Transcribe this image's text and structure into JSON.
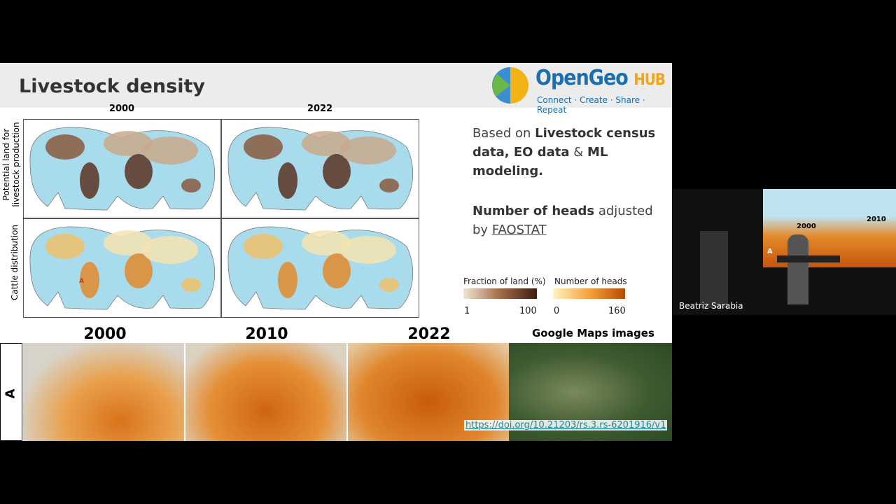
{
  "slide": {
    "title": "Livestock density",
    "logo": {
      "name": "OpenGeo",
      "hub": "HUB",
      "tagline": "Connect · Create · Share · Repeat"
    },
    "figure": {
      "columns": [
        "2000",
        "2022"
      ],
      "rows": [
        "Potential land for livestock production",
        "Cattle distribution"
      ],
      "marker": "A"
    },
    "description": {
      "first": [
        "Based on ",
        "Livestock census data, EO data",
        " & ",
        "ML modeling."
      ],
      "second": [
        "Number of heads",
        " adjusted by ",
        "FAOSTAT"
      ]
    },
    "legends": [
      {
        "title": "Fraction of land (%)",
        "min": 1,
        "max": 100
      },
      {
        "title": "Number of heads",
        "min": 0,
        "max": 160
      }
    ],
    "strip": {
      "label": "A",
      "years": [
        "2000",
        "2010",
        "2022"
      ],
      "google_title": "Google Maps images",
      "link": "https://doi.org/10.21203/rs.3.rs-6201916/v1"
    }
  },
  "speaker": {
    "name": "Beatriz Sarabia",
    "inset_years": [
      "2000",
      "2010"
    ],
    "inset_label": "A"
  }
}
